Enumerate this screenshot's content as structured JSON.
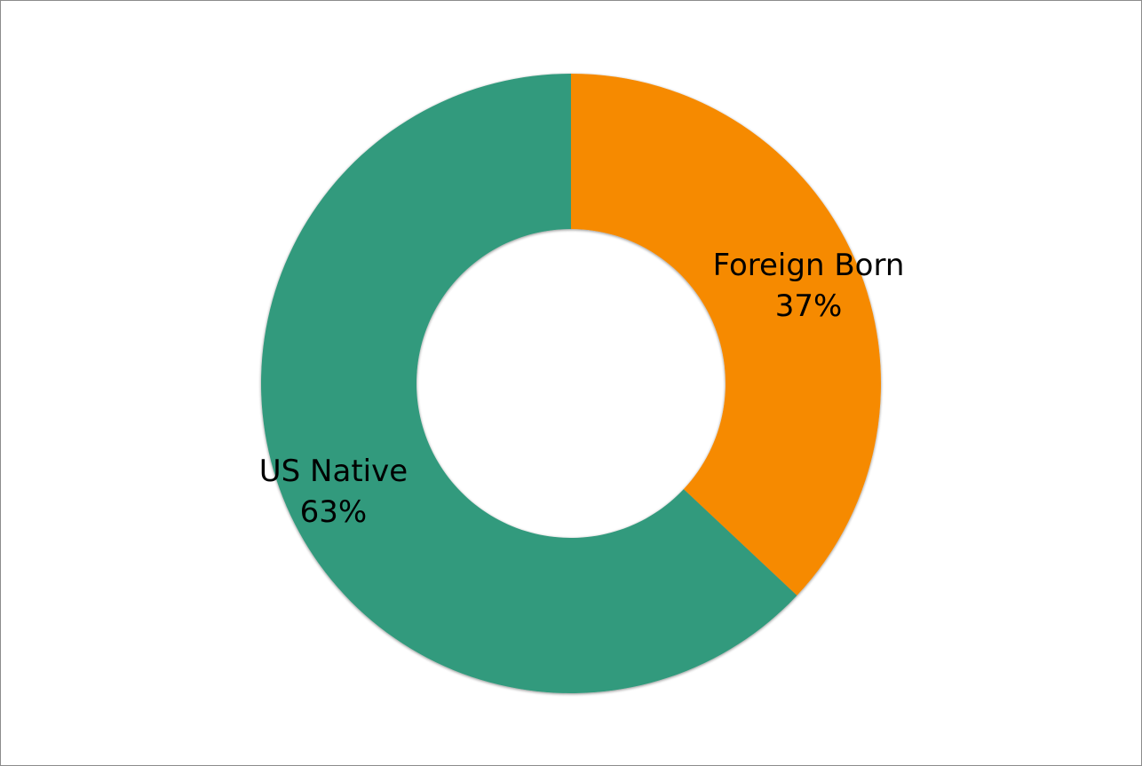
{
  "chart_data": {
    "type": "pie",
    "variant": "donut",
    "title": "",
    "categories": [
      "Foreign Born",
      "US Native"
    ],
    "values": [
      37,
      63
    ],
    "unit": "%",
    "colors": [
      "#F68A02",
      "#339A7D"
    ],
    "data_labels": [
      {
        "name": "Foreign Born",
        "value": "37%"
      },
      {
        "name": "US Native",
        "value": "63%"
      }
    ],
    "legend": "none",
    "start_angle_deg": 0,
    "direction": "clockwise"
  }
}
